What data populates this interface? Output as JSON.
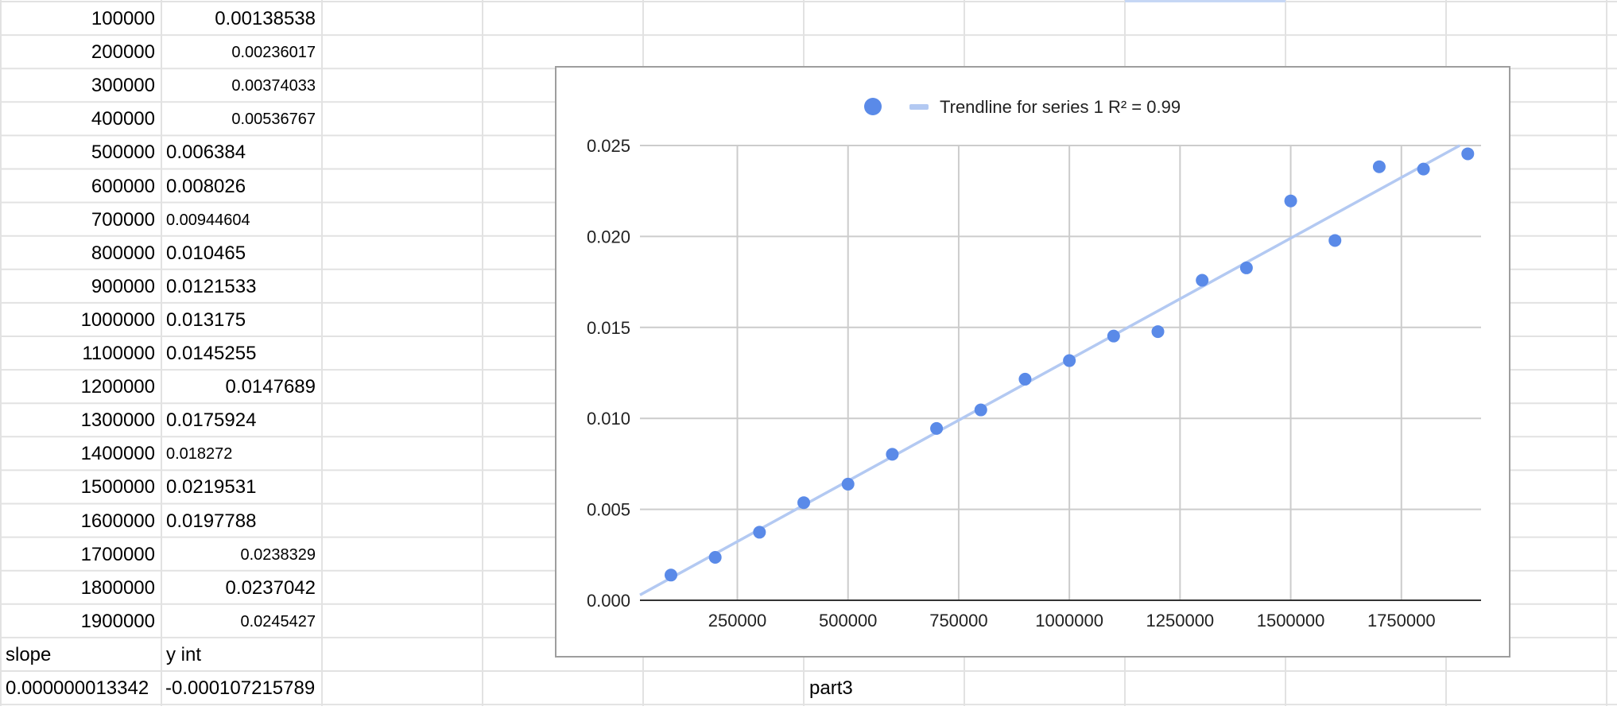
{
  "sheet": {
    "rows": [
      {
        "a": "100000",
        "b": "0.00138538",
        "b_align": "right",
        "b_small": false
      },
      {
        "a": "200000",
        "b": "0.00236017",
        "b_align": "right",
        "b_small": true
      },
      {
        "a": "300000",
        "b": "0.00374033",
        "b_align": "right",
        "b_small": true
      },
      {
        "a": "400000",
        "b": "0.00536767",
        "b_align": "right",
        "b_small": true
      },
      {
        "a": "500000",
        "b": "0.006384",
        "b_align": "left",
        "b_small": false
      },
      {
        "a": "600000",
        "b": "0.008026",
        "b_align": "left",
        "b_small": false
      },
      {
        "a": "700000",
        "b": "0.00944604",
        "b_align": "left",
        "b_small": true
      },
      {
        "a": "800000",
        "b": "0.010465",
        "b_align": "left",
        "b_small": false
      },
      {
        "a": "900000",
        "b": "0.0121533",
        "b_align": "left",
        "b_small": false
      },
      {
        "a": "1000000",
        "b": "0.013175",
        "b_align": "left",
        "b_small": false
      },
      {
        "a": "1100000",
        "b": "0.0145255",
        "b_align": "left",
        "b_small": false
      },
      {
        "a": "1200000",
        "b": "0.0147689",
        "b_align": "right",
        "b_small": false
      },
      {
        "a": "1300000",
        "b": "0.0175924",
        "b_align": "left",
        "b_small": false
      },
      {
        "a": "1400000",
        "b": "0.018272",
        "b_align": "left",
        "b_small": true
      },
      {
        "a": "1500000",
        "b": "0.0219531",
        "b_align": "left",
        "b_small": false
      },
      {
        "a": "1600000",
        "b": "0.0197788",
        "b_align": "left",
        "b_small": false
      },
      {
        "a": "1700000",
        "b": "0.0238329",
        "b_align": "right",
        "b_small": true
      },
      {
        "a": "1800000",
        "b": "0.0237042",
        "b_align": "right",
        "b_small": false
      },
      {
        "a": "1900000",
        "b": "0.0245427",
        "b_align": "right",
        "b_small": true
      }
    ],
    "labels": {
      "slope": "slope",
      "y_int": "y int"
    },
    "results": {
      "slope": "0.000000013342",
      "y_int": "-0.000107215789"
    },
    "part_label": "part3",
    "gridline_color": "#e2e2e2",
    "selection_color": "#c6d7f5"
  },
  "chart_data": {
    "type": "scatter",
    "title": "",
    "xlabel": "",
    "ylabel": "",
    "x": [
      100000,
      200000,
      300000,
      400000,
      500000,
      600000,
      700000,
      800000,
      900000,
      1000000,
      1100000,
      1200000,
      1300000,
      1400000,
      1500000,
      1600000,
      1700000,
      1800000,
      1900000
    ],
    "y": [
      0.00138538,
      0.00236017,
      0.00374033,
      0.00536767,
      0.006384,
      0.008026,
      0.00944604,
      0.010465,
      0.0121533,
      0.013175,
      0.0145255,
      0.0147689,
      0.0175924,
      0.018272,
      0.0219531,
      0.0197788,
      0.0238329,
      0.0237042,
      0.0245427
    ],
    "xlim": [
      30000,
      1930000
    ],
    "ylim": [
      0,
      0.025
    ],
    "x_ticks": [
      250000,
      500000,
      750000,
      1000000,
      1250000,
      1500000,
      1750000
    ],
    "x_tick_labels": [
      "250000",
      "500000",
      "750000",
      "1000000",
      "1250000",
      "1500000",
      "1750000"
    ],
    "y_ticks": [
      0,
      0.005,
      0.01,
      0.015,
      0.02,
      0.025
    ],
    "y_tick_labels": [
      "0.000",
      "0.005",
      "0.010",
      "0.015",
      "0.020",
      "0.025"
    ],
    "trendline": {
      "slope": 1.3342e-08,
      "intercept": -0.000107215789
    },
    "legend": {
      "placement": "top-center",
      "trend_label": "Trendline for series 1 R² = 0.99"
    },
    "grid": true,
    "colors": {
      "points": "#5a8ae8",
      "trendline": "#b3c9f2",
      "grid": "#cccccc",
      "axis": "#333333"
    }
  }
}
